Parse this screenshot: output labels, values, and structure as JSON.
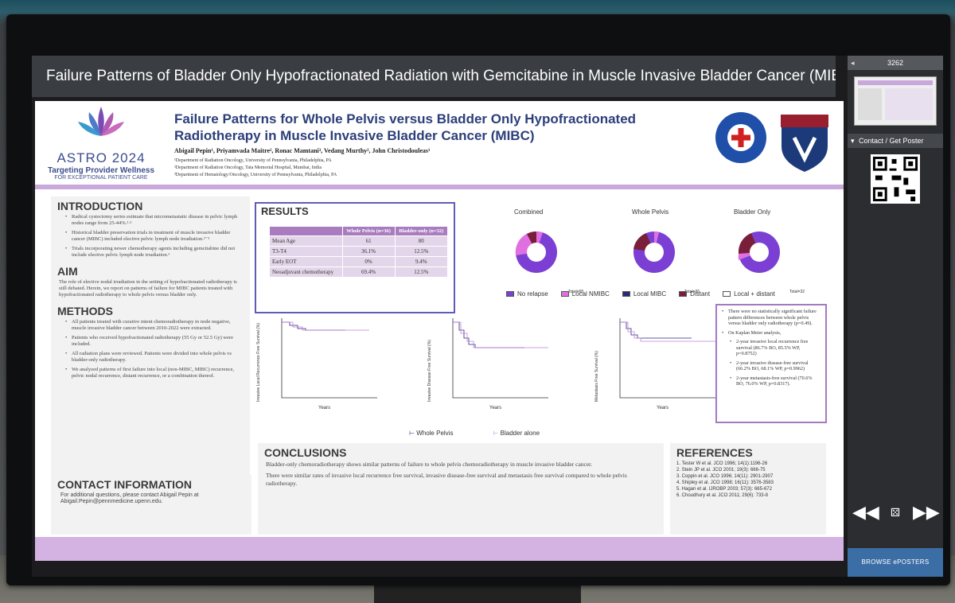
{
  "header": {
    "title": "Failure Patterns of Bladder Only Hypofractionated Radiation with Gemcitabine in Muscle Invasive Bladder Cancer (MIBC)"
  },
  "sidebar": {
    "poster_number": "3262",
    "contact_label": "Contact / Get Poster",
    "browse_label": "BROWSE ePOSTERS"
  },
  "poster": {
    "logo": {
      "name": "ASTRO 2024",
      "tagline": "Targeting Provider Wellness",
      "tagline2": "FOR EXCEPTIONAL PATIENT CARE"
    },
    "title": "Failure Patterns for Whole Pelvis versus Bladder Only Hypofractionated Radiotherapy in Muscle Invasive Bladder Cancer (MIBC)",
    "authors": "Abigail Pepin¹, Priyamvada Maitre², Ronac Mamtani³, Vedang Murthy², John Christodouleas¹",
    "affiliations": [
      "¹Department of Radiation Oncology, University of Pennsylvania, Philadelphia, PA",
      "²Department of Radiation Oncology, Tata Memorial Hospital, Mumbai, India",
      "³Department of Hematology/Oncology, University of Pennsylvania, Philadelphia, PA"
    ],
    "introduction": {
      "heading": "INTRODUCTION",
      "bullets": [
        "Radical cystectomy series estimate that micrometastatic disease in pelvic lymph nodes range from 25-44%.¹·²",
        "Historical bladder preservation trials in treatment of muscle invasive bladder cancer (MIBC) included elective pelvic lymph node irradiation.³⁻⁵",
        "Trials incorporating newer chemotherapy agents including gemcitabine did not include elective pelvic lymph node irradiation.⁶"
      ]
    },
    "aim": {
      "heading": "AIM",
      "text": "The role of elective nodal irradiation in the setting of hypofractionated radiotherapy is still debated. Herein, we report on patterns of failure for MIBC patients treated with hypofractionated radiotherapy to whole pelvis versus bladder only."
    },
    "methods": {
      "heading": "METHODS",
      "bullets": [
        "All patients treated with curative intent chemoradiotherapy in node negative, muscle invasive bladder cancer between 2010-2022 were extracted.",
        "Patients who received hypofractionated radiotherapy (55 Gy or 52.5 Gy) were included.",
        "All radiation plans were reviewed. Patients were divided into whole pelvis vs bladder-only radiotherapy.",
        "We analyzed patterns of first failure into local (non-MIBC, MIBC) recurrence, pelvic nodal recurrence, distant recurrence, or a combination thereof."
      ]
    },
    "contact": {
      "heading": "CONTACT INFORMATION",
      "text": "For additional questions, please contact Abigail Pepin at Abigail.Pepin@pennmedicine.upenn.edu."
    },
    "results": {
      "heading": "RESULTS",
      "columns": [
        "",
        "Whole Pelvis (n=36)",
        "Bladder-only (n=32)"
      ],
      "rows": [
        [
          "Mean Age",
          "61",
          "80"
        ],
        [
          "T3-T4",
          "36.1%",
          "12.5%"
        ],
        [
          "Early EOT",
          "0%",
          "9.4%"
        ],
        [
          "Neoadjuvant chemotherapy",
          "69.4%",
          "12.5%"
        ]
      ]
    },
    "pies": {
      "titles": [
        "Combined",
        "Whole Pelvis",
        "Bladder Only"
      ],
      "totals": [
        "Total=68",
        "Total=36",
        "Total=32"
      ],
      "legend": [
        "No relapse",
        "Local NMIBC",
        "Local MIBC",
        "Distant",
        "Local + distant"
      ],
      "colors": [
        "#7b3fd4",
        "#e070e0",
        "#2a2a7a",
        "#7a1f3a",
        "#ffffff"
      ]
    },
    "km": {
      "ylabels": [
        "Invasive Local Recurrence Free Survival (%)",
        "Invasive Disease Free Survival (%)",
        "Metastasis Free Survival (%)"
      ],
      "xlabel": "Years",
      "legend": [
        "Whole Pelvis",
        "Bladder alone"
      ]
    },
    "findings": {
      "bullets": [
        "There were no statistically significant failure pattern differences between whole pelvis versus bladder only radiotherapy (p=0.49).",
        "On Kaplan Meier analysis,"
      ],
      "subbullets": [
        "2-year invasive local recurrence free survival (86.7% BO, 85.5% WP, p=0.8752)",
        "2-year invasive disease-free survival (66.2% BO, 68.1% WP, p=0.9962)",
        "2-year metastasis-free survival (70.6% BO, 76.0% WP, p=0.8317)."
      ]
    },
    "conclusions": {
      "heading": "CONCLUSIONS",
      "p1": "Bladder-only chemoradiotherapy shows similar patterns of failure to whole pelvis chemoradiotherapy in muscle invasive bladder cancer.",
      "p2": "There were similar rates of invasive local recurrence free survival, invasive disease-free survival and metastasis free survival compared to whole pelvis radiotherapy."
    },
    "references": {
      "heading": "REFERENCES",
      "items": [
        "1. Tester W et al. JCO 1996; 14(1):1196-26",
        "2. Stein JP et al. JCO 2001; 19(3): 666-75",
        "3. Coppin et al. JCO 1996; 14(11): 2901-2907",
        "4. Shipley et al. JCO 1998; 16(11): 3576-3583",
        "5. Hagan et al. IJROBP 2003; 57(3): 665-672",
        "6. Choudhury et al. JCO 2011; 29(6): 733-8"
      ]
    }
  }
}
